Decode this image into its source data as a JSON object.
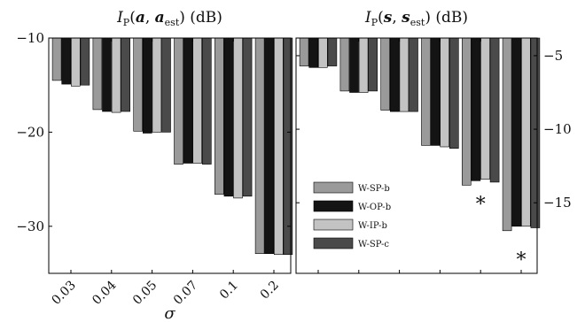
{
  "colors": {
    "W-SP-b": "#9a9a9a",
    "W-OP-b": "#141414",
    "W-IP-b": "#c3c3c3",
    "W-SP-c": "#4a4a4a",
    "bar_stroke": "#000000",
    "axis": "#000000"
  },
  "chart_data": [
    {
      "type": "bar",
      "title": "I_P(a, a_est) (dB)",
      "xlabel": "σ",
      "ylabel": "",
      "ylim": [
        -35,
        -10
      ],
      "yticks": [
        -10,
        -20,
        -30
      ],
      "ytick_side": "left",
      "grid": false,
      "legend": null,
      "categories": [
        "0.03",
        "0.04",
        "0.05",
        "0.07",
        "0.1",
        "0.2"
      ],
      "series": [
        {
          "name": "W-SP-b",
          "values": [
            -14.5,
            -17.6,
            -19.9,
            -23.4,
            -26.6,
            -32.9
          ]
        },
        {
          "name": "W-OP-b",
          "values": [
            -14.9,
            -17.8,
            -20.1,
            -23.3,
            -26.8,
            -32.9
          ]
        },
        {
          "name": "W-IP-b",
          "values": [
            -15.1,
            -17.9,
            -20.0,
            -23.3,
            -27.0,
            -33.0
          ]
        },
        {
          "name": "W-SP-c",
          "values": [
            -15.0,
            -17.8,
            -20.0,
            -23.4,
            -26.8,
            -33.0
          ]
        }
      ]
    },
    {
      "type": "bar",
      "title": "I_P(s, s_est) (dB)",
      "xlabel": "",
      "ylabel": "",
      "ylim": [
        -19.8,
        -3.8
      ],
      "yticks": [
        -5,
        -10,
        -15
      ],
      "ytick_side": "right",
      "grid": false,
      "legend": "center-left",
      "categories": [
        "0.03",
        "0.04",
        "0.05",
        "0.07",
        "0.1",
        "0.2"
      ],
      "series": [
        {
          "name": "W-SP-b",
          "values": [
            -5.7,
            -7.4,
            -8.7,
            -11.1,
            -13.8,
            -16.9
          ]
        },
        {
          "name": "W-OP-b",
          "values": [
            -5.8,
            -7.5,
            -8.8,
            -11.1,
            -13.5,
            -16.6
          ]
        },
        {
          "name": "W-IP-b",
          "values": [
            -5.8,
            -7.5,
            -8.8,
            -11.2,
            -13.4,
            -16.6
          ]
        },
        {
          "name": "W-SP-c",
          "values": [
            -5.7,
            -7.4,
            -8.8,
            -11.3,
            -13.6,
            -16.7
          ]
        }
      ],
      "annotations": [
        {
          "text": "*",
          "category": "0.1",
          "y": -14.8
        },
        {
          "text": "*",
          "category": "0.2",
          "y": -18.6
        }
      ]
    }
  ]
}
